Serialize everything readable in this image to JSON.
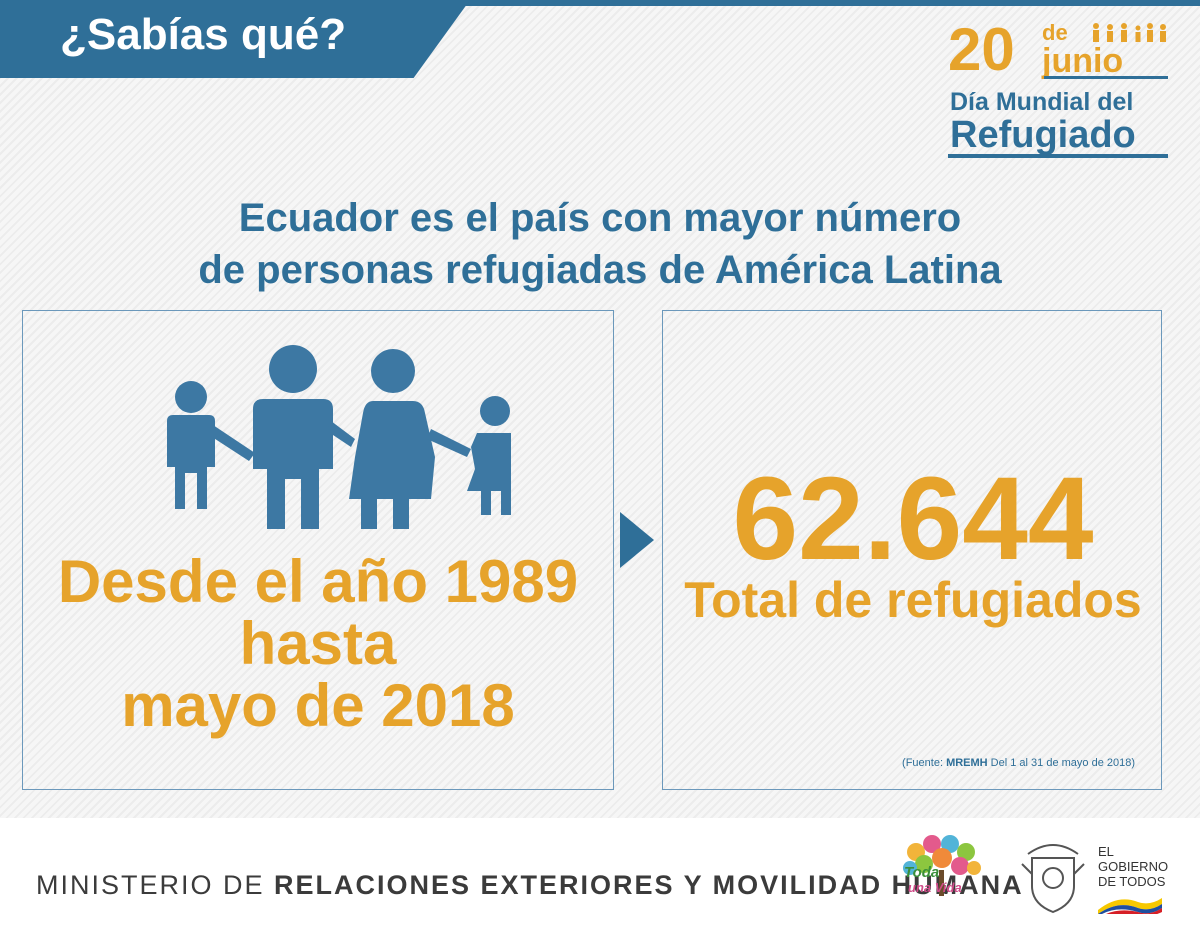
{
  "banner": {
    "title": "¿Sabías qué?"
  },
  "badge": {
    "day": "20",
    "de": "de",
    "month": "junio",
    "line1": "Día Mundial del",
    "line2": "Refugiado"
  },
  "headline": {
    "line1": "Ecuador es el país con mayor número",
    "line2": "de personas refugiadas de América Latina"
  },
  "left_panel": {
    "line1": "Desde el año 1989",
    "line2": "hasta",
    "line3": "mayo de 2018"
  },
  "right_panel": {
    "number": "62.644",
    "label": "Total de refugiados",
    "source_prefix": "(Fuente: ",
    "source_bold": "MREMH",
    "source_rest": "  Del 1 al 31 de mayo de 2018)"
  },
  "footer": {
    "ministry_light": "MINISTERIO DE ",
    "ministry_bold": "RELACIONES EXTERIORES Y MOVILIDAD HUMANA",
    "logo_line1": "Toda",
    "logo_line2": "una Vida",
    "gov_line1": "EL",
    "gov_line2": "GOBIERNO",
    "gov_line3": "DE TODOS"
  },
  "colors": {
    "blue": "#2f6f98",
    "gold": "#e6a32b"
  },
  "icons": [
    "family-icon",
    "arrow-right-icon",
    "tree-logo-icon",
    "coat-of-arms-icon",
    "flag-ribbon-icon"
  ]
}
